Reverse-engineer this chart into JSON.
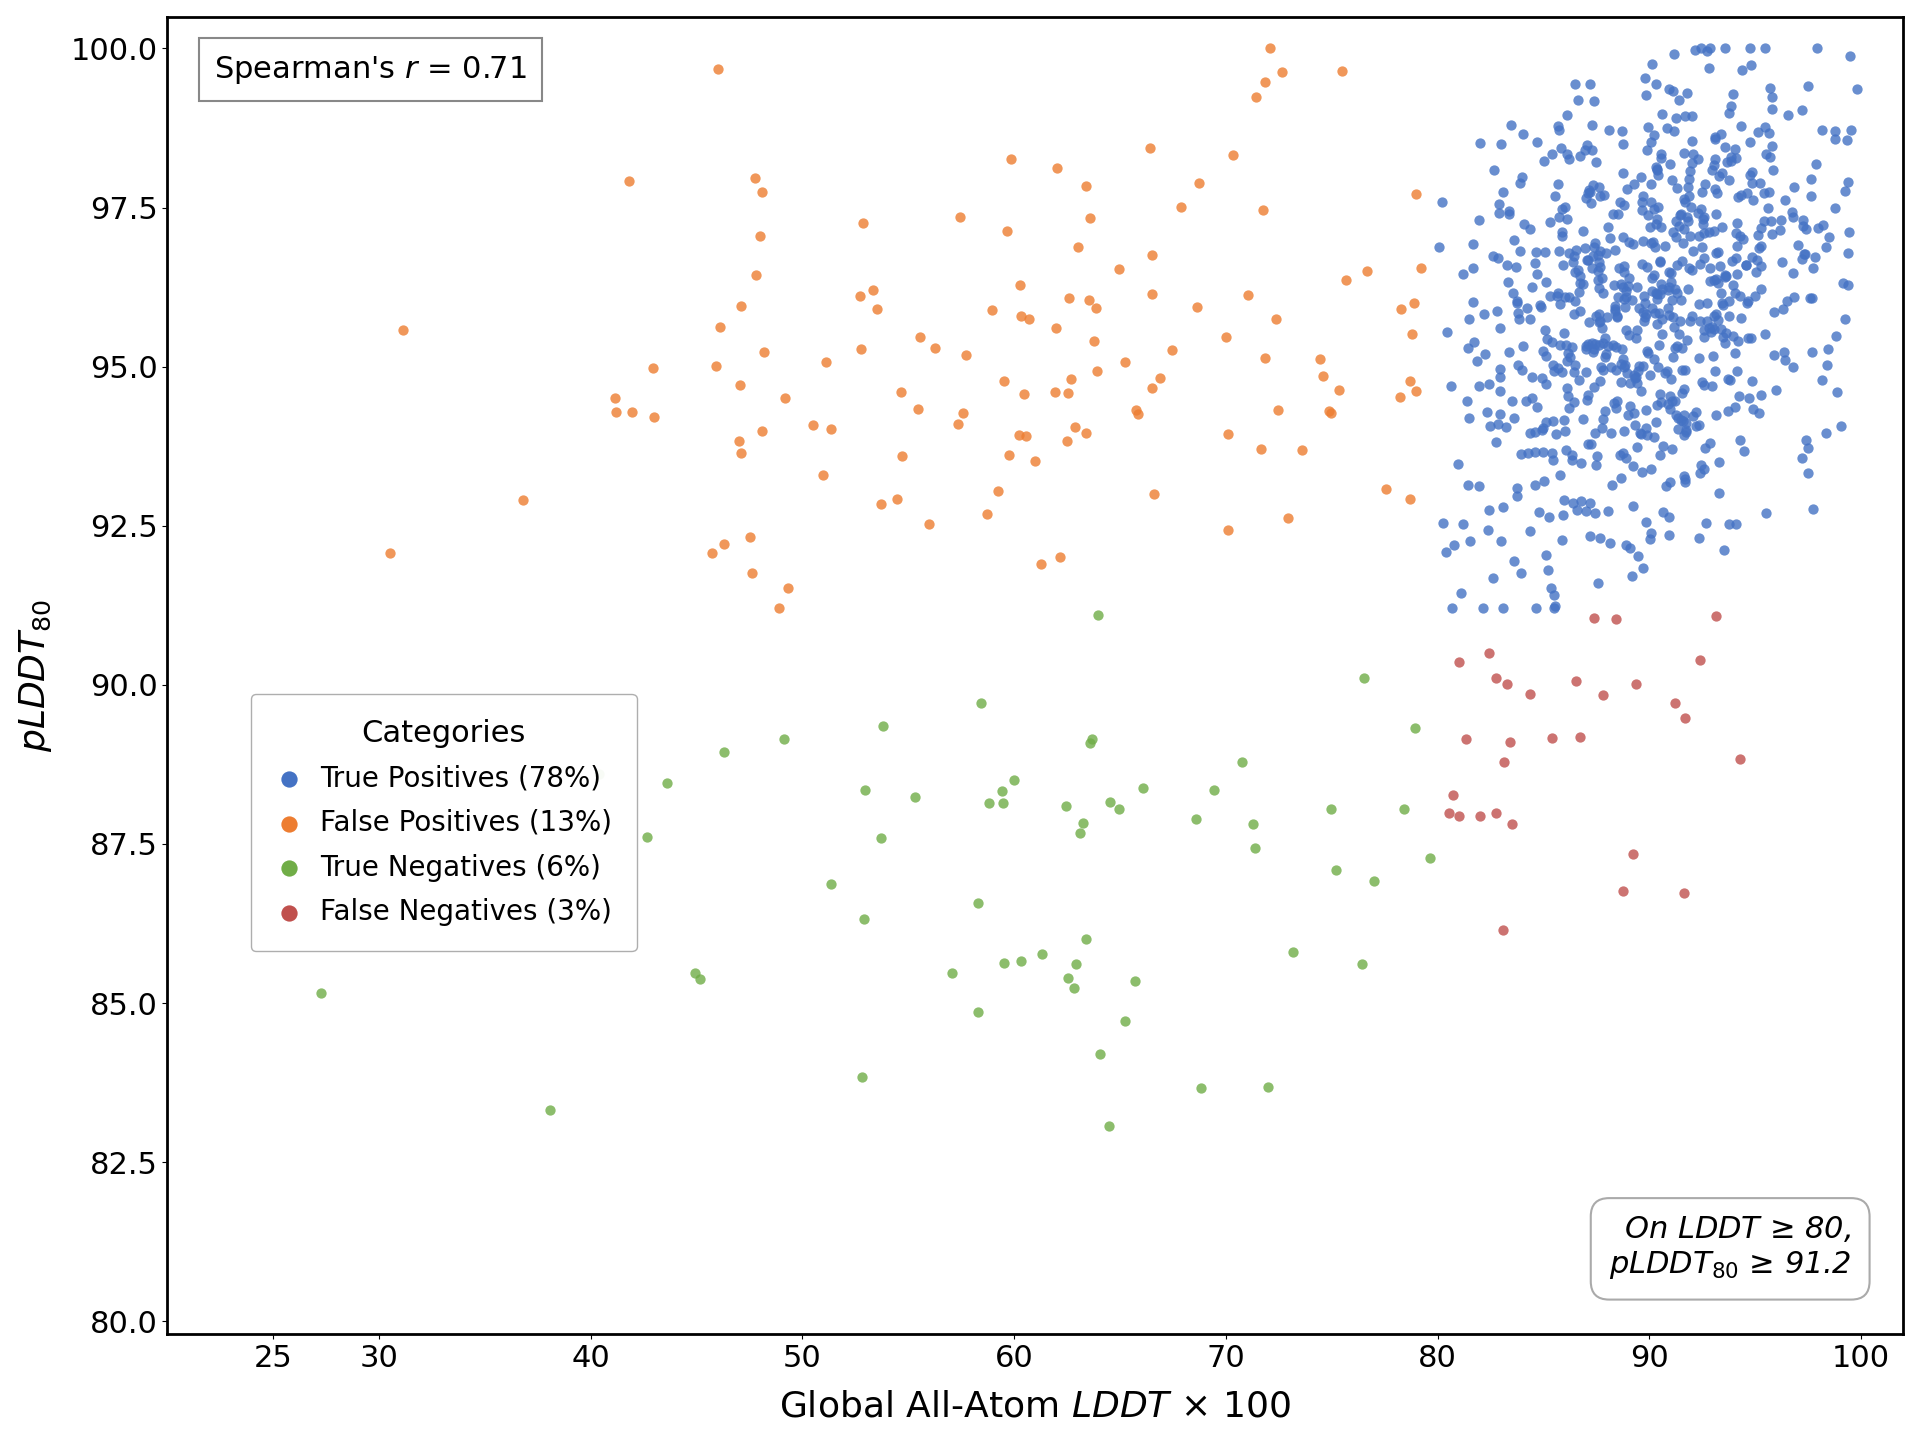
{
  "xlabel": "Global All-Atom $LDDT$ × 100",
  "ylabel": "$pLDDT_{80}$",
  "xlim": [
    20,
    102
  ],
  "ylim": [
    79.8,
    100.5
  ],
  "xticks": [
    25,
    30,
    40,
    50,
    60,
    70,
    80,
    90,
    100
  ],
  "yticks": [
    80.0,
    82.5,
    85.0,
    87.5,
    90.0,
    92.5,
    95.0,
    97.5,
    100.0
  ],
  "spearman_r": "0.71",
  "threshold_line1": "On $LDDT$ ≥ 80,",
  "threshold_line2": "$pLDDT_{80}$ ≥ 91.2",
  "categories": {
    "True Positives": {
      "label": "True Positives (78%)",
      "color": "#4472C4",
      "n": 780
    },
    "False Positives": {
      "label": "False Positives (13%)",
      "color": "#ED7D31",
      "n": 130
    },
    "True Negatives": {
      "label": "True Negatives (6%)",
      "color": "#70AD47",
      "n": 60
    },
    "False Negatives": {
      "label": "False Negatives (3%)",
      "color": "#C0504D",
      "n": 30
    }
  },
  "marker_size": 55,
  "alpha": 0.8,
  "background_color": "#ffffff",
  "figsize": [
    19.2,
    14.4
  ],
  "dpi": 100,
  "xlabel_fontsize": 26,
  "ylabel_fontsize": 26,
  "tick_fontsize": 22,
  "annot_fontsize": 22,
  "legend_title_fontsize": 22,
  "legend_fontsize": 20
}
